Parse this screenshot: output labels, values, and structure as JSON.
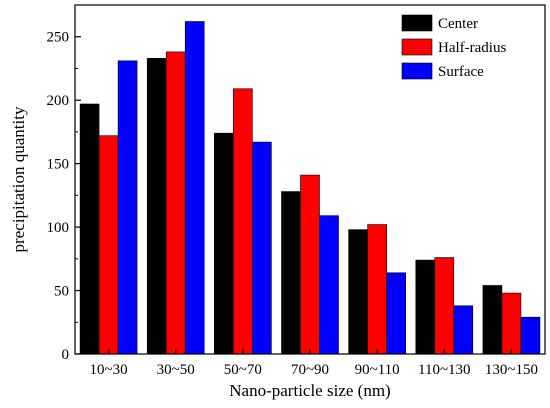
{
  "chart_data": {
    "type": "bar",
    "title": "",
    "xlabel": "Nano-particle size (nm)",
    "ylabel": "precipitation quantity",
    "categories": [
      "10~30",
      "30~50",
      "50~70",
      "70~90",
      "90~110",
      "110~130",
      "130~150"
    ],
    "ylim": [
      0,
      275
    ],
    "yticks": [
      0,
      50,
      100,
      150,
      200,
      250
    ],
    "grid": false,
    "legend_position": "top-right",
    "series": [
      {
        "name": "Center",
        "color": "#000000",
        "values": [
          197,
          233,
          174,
          128,
          98,
          74,
          54
        ]
      },
      {
        "name": "Half-radius",
        "color": "#ff0000",
        "values": [
          172,
          238,
          209,
          141,
          102,
          76,
          48
        ]
      },
      {
        "name": "Surface",
        "color": "#0000ff",
        "values": [
          231,
          262,
          167,
          109,
          64,
          38,
          29
        ]
      }
    ]
  }
}
